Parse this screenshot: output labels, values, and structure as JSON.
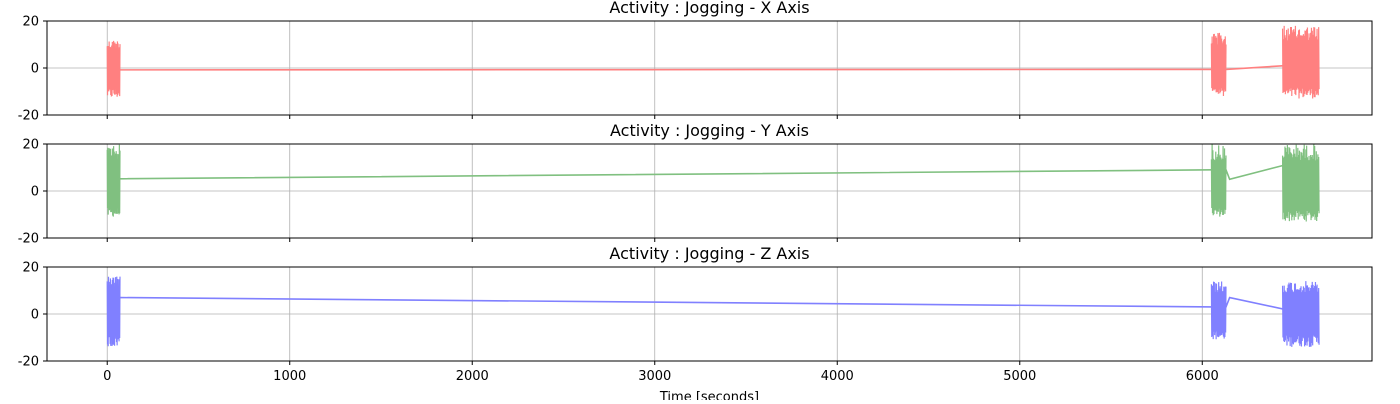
{
  "chart_data": [
    {
      "type": "line",
      "title": "Activity : Jogging - X Axis",
      "xlabel": "",
      "ylabel": "",
      "xlim": [
        -330,
        6930
      ],
      "ylim": [
        -20,
        20
      ],
      "yticks": [
        -20,
        0,
        20
      ],
      "xticks": [
        0,
        1000,
        2000,
        3000,
        4000,
        5000,
        6000
      ],
      "xtick_labels_visible": false,
      "grid": true,
      "color": "#ff8080",
      "series": [
        {
          "trend": [
            [
              15,
              -0.8
            ],
            [
              70,
              -0.8
            ],
            [
              6060,
              -0.6
            ],
            [
              6130,
              -0.6
            ],
            [
              6450,
              1.0
            ],
            [
              6620,
              1.0
            ]
          ],
          "bursts": [
            {
              "x": [
                0,
                70
              ],
              "min": -13,
              "max": 12
            },
            {
              "x": [
                6050,
                6130
              ],
              "min": -12,
              "max": 15
            },
            {
              "x": [
                6440,
                6640
              ],
              "min": -13,
              "max": 18
            }
          ]
        }
      ]
    },
    {
      "type": "line",
      "title": "Activity : Jogging - Y Axis",
      "xlabel": "",
      "ylabel": "",
      "xlim": [
        -330,
        6930
      ],
      "ylim": [
        -20,
        20
      ],
      "yticks": [
        -20,
        0,
        20
      ],
      "xticks": [
        0,
        1000,
        2000,
        3000,
        4000,
        5000,
        6000
      ],
      "xtick_labels_visible": false,
      "grid": true,
      "color": "#80c080",
      "series": [
        {
          "trend": [
            [
              70,
              5.2
            ],
            [
              6060,
              9.0
            ],
            [
              6130,
              9.0
            ],
            [
              6150,
              5.0
            ],
            [
              6450,
              11.0
            ],
            [
              6620,
              11.0
            ]
          ],
          "bursts": [
            {
              "x": [
                0,
                70
              ],
              "min": -11,
              "max": 20
            },
            {
              "x": [
                6050,
                6130
              ],
              "min": -11,
              "max": 20
            },
            {
              "x": [
                6440,
                6640
              ],
              "min": -13,
              "max": 20
            }
          ]
        }
      ]
    },
    {
      "type": "line",
      "title": "Activity : Jogging - Z Axis",
      "xlabel": "Time [seconds]",
      "ylabel": "",
      "xlim": [
        -330,
        6930
      ],
      "ylim": [
        -20,
        20
      ],
      "yticks": [
        -20,
        0,
        20
      ],
      "xticks": [
        0,
        1000,
        2000,
        3000,
        4000,
        5000,
        6000
      ],
      "xtick_labels_visible": true,
      "grid": true,
      "color": "#8080ff",
      "series": [
        {
          "trend": [
            [
              70,
              7.0
            ],
            [
              6060,
              3.0
            ],
            [
              6130,
              3.0
            ],
            [
              6150,
              7.0
            ],
            [
              6450,
              2.0
            ],
            [
              6620,
              2.0
            ]
          ],
          "bursts": [
            {
              "x": [
                0,
                70
              ],
              "min": -14,
              "max": 16
            },
            {
              "x": [
                6050,
                6130
              ],
              "min": -11,
              "max": 14
            },
            {
              "x": [
                6440,
                6640
              ],
              "min": -14,
              "max": 14
            }
          ]
        }
      ]
    }
  ]
}
